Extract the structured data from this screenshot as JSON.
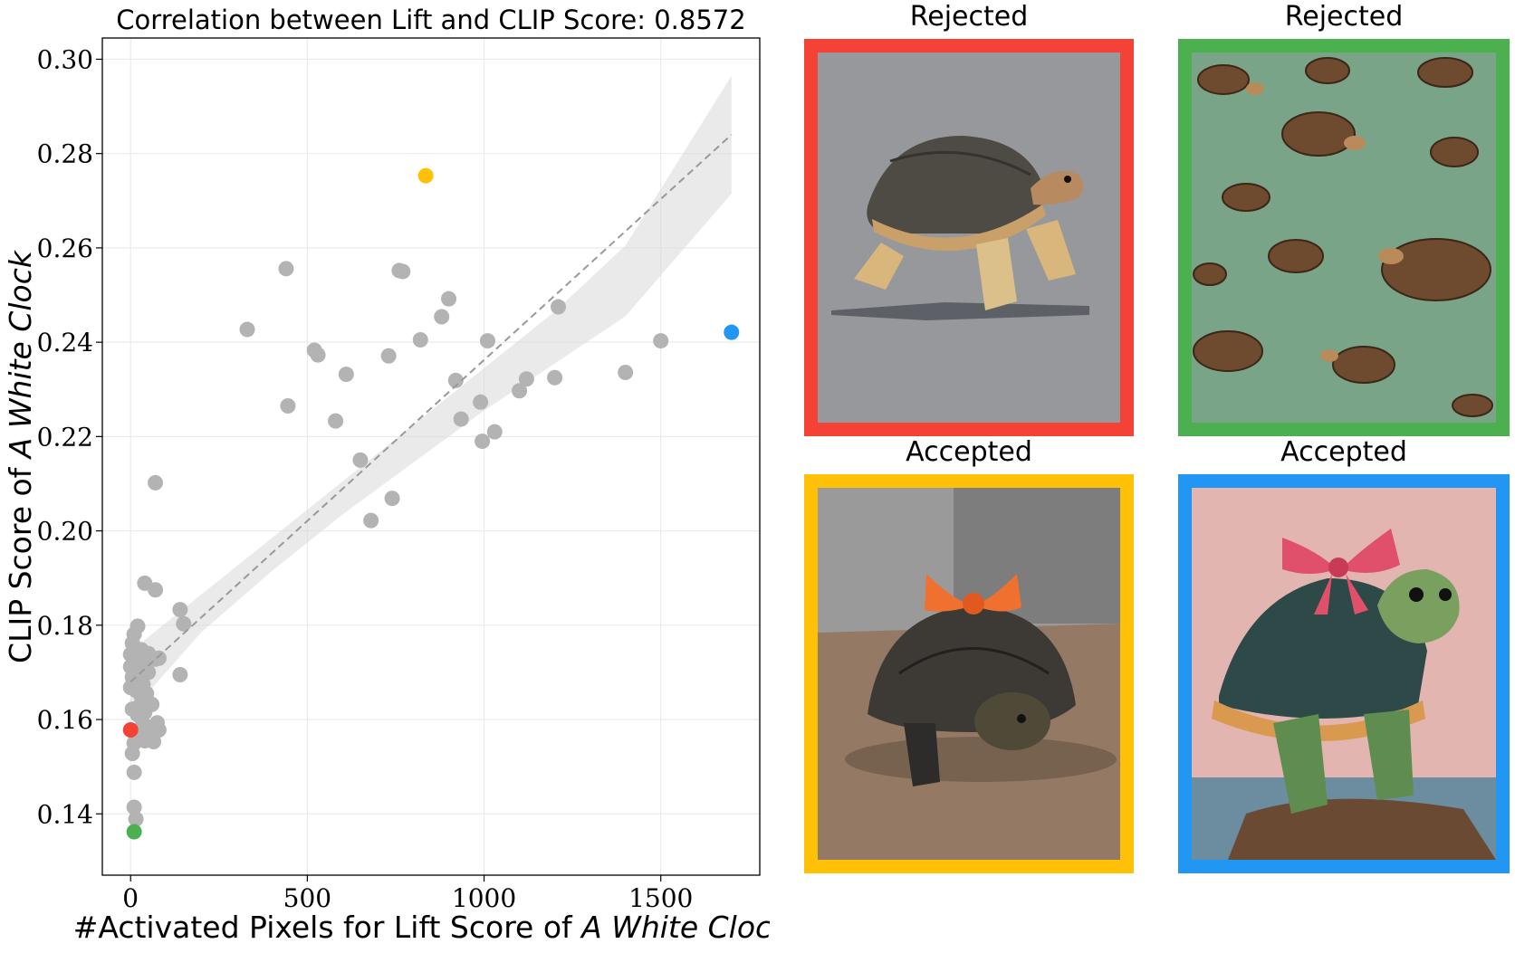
{
  "chart_data": {
    "type": "scatter",
    "title": "Correlation between Lift and CLIP Score: 0.8572",
    "xlabel_prefix": "#Activated Pixels for Lift Score of ",
    "xlabel_italic": "A White Clock",
    "ylabel_prefix": "CLIP Score of ",
    "ylabel_italic": "A White Clock",
    "xlim": [
      -80,
      1780
    ],
    "ylim": [
      0.127,
      0.3045
    ],
    "xticks": [
      0,
      500,
      1000,
      1500
    ],
    "xtick_labels": [
      "0",
      "500",
      "1000",
      "1500"
    ],
    "yticks": [
      0.14,
      0.16,
      0.18,
      0.2,
      0.22,
      0.24,
      0.26,
      0.28,
      0.3
    ],
    "ytick_labels": [
      "0.14",
      "0.16",
      "0.18",
      "0.20",
      "0.22",
      "0.24",
      "0.26",
      "0.28",
      "0.30"
    ],
    "grid": true,
    "fit_line": {
      "x": [
        0,
        1700
      ],
      "y": [
        0.168,
        0.284
      ],
      "style": "dashed"
    },
    "confidence_band": {
      "x": [
        0,
        200,
        400,
        600,
        800,
        1000,
        1200,
        1400,
        1700
      ],
      "upper": [
        0.1745,
        0.1865,
        0.1985,
        0.2105,
        0.2225,
        0.2345,
        0.2465,
        0.2605,
        0.2965
      ],
      "lower": [
        0.1615,
        0.1785,
        0.1915,
        0.2035,
        0.2145,
        0.2255,
        0.2355,
        0.2455,
        0.2715
      ]
    },
    "series": [
      {
        "color": "#b3b3b3",
        "points": [
          [
            330,
            0.2427
          ],
          [
            440,
            0.2556
          ],
          [
            445,
            0.2265
          ],
          [
            520,
            0.2383
          ],
          [
            530,
            0.2373
          ],
          [
            580,
            0.2233
          ],
          [
            610,
            0.2332
          ],
          [
            650,
            0.215
          ],
          [
            680,
            0.2022
          ],
          [
            730,
            0.2371
          ],
          [
            740,
            0.2069
          ],
          [
            760,
            0.2552
          ],
          [
            770,
            0.255
          ],
          [
            820,
            0.2405
          ],
          [
            880,
            0.2454
          ],
          [
            900,
            0.2492
          ],
          [
            920,
            0.2319
          ],
          [
            935,
            0.2237
          ],
          [
            990,
            0.2273
          ],
          [
            995,
            0.219
          ],
          [
            1010,
            0.2403
          ],
          [
            1030,
            0.221
          ],
          [
            1100,
            0.2297
          ],
          [
            1120,
            0.2322
          ],
          [
            1210,
            0.2475
          ],
          [
            1200,
            0.2325
          ],
          [
            1400,
            0.2336
          ],
          [
            1500,
            0.2403
          ],
          [
            70,
            0.2102
          ],
          [
            40,
            0.1889
          ],
          [
            70,
            0.1875
          ],
          [
            140,
            0.1833
          ],
          [
            150,
            0.1803
          ],
          [
            140,
            0.1695
          ],
          [
            80,
            0.173
          ],
          [
            70,
            0.1728
          ],
          [
            20,
            0.1798
          ],
          [
            10,
            0.1781
          ],
          [
            5,
            0.1762
          ],
          [
            30,
            0.1748
          ],
          [
            50,
            0.174
          ],
          [
            0,
            0.1738
          ],
          [
            10,
            0.1735
          ],
          [
            20,
            0.173
          ],
          [
            40,
            0.1725
          ],
          [
            30,
            0.1715
          ],
          [
            0,
            0.1712
          ],
          [
            15,
            0.1705
          ],
          [
            50,
            0.17
          ],
          [
            25,
            0.1695
          ],
          [
            5,
            0.169
          ],
          [
            20,
            0.1682
          ],
          [
            35,
            0.1675
          ],
          [
            0,
            0.1668
          ],
          [
            15,
            0.1662
          ],
          [
            45,
            0.1655
          ],
          [
            30,
            0.165
          ],
          [
            60,
            0.1632
          ],
          [
            25,
            0.1628
          ],
          [
            5,
            0.1622
          ],
          [
            40,
            0.1615
          ],
          [
            20,
            0.161
          ],
          [
            35,
            0.1592
          ],
          [
            75,
            0.1593
          ],
          [
            80,
            0.1578
          ],
          [
            50,
            0.157
          ],
          [
            15,
            0.1568
          ],
          [
            40,
            0.1555
          ],
          [
            65,
            0.1553
          ],
          [
            10,
            0.155
          ],
          [
            5,
            0.1528
          ],
          [
            10,
            0.1488
          ],
          [
            10,
            0.1414
          ],
          [
            15,
            0.1389
          ]
        ]
      },
      {
        "color": "#ffc107",
        "points": [
          [
            835,
            0.2753
          ]
        ]
      },
      {
        "color": "#2196f3",
        "points": [
          [
            1700,
            0.2421
          ]
        ]
      },
      {
        "color": "#f44336",
        "points": [
          [
            0,
            0.1578
          ]
        ]
      },
      {
        "color": "#4caf50",
        "points": [
          [
            10,
            0.1362
          ]
        ]
      }
    ]
  },
  "panels": [
    {
      "title": "Rejected",
      "frame_color": "#f44336"
    },
    {
      "title": "Rejected",
      "frame_color": "#4caf50"
    },
    {
      "title": "Accepted",
      "frame_color": "#ffc107"
    },
    {
      "title": "Accepted",
      "frame_color": "#2196f3"
    }
  ]
}
